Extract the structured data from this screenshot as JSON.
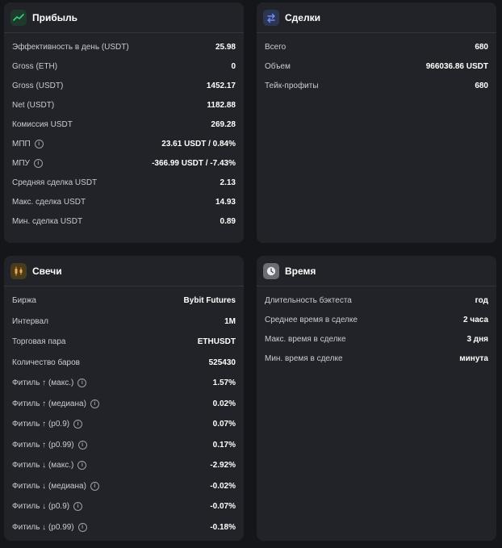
{
  "profit": {
    "title": "Прибыль",
    "icon": "trend-up-icon",
    "rows": [
      {
        "label": "Эффективность в день (USDT)",
        "value": "25.98",
        "info": false
      },
      {
        "label": "Gross (ETH)",
        "value": "0",
        "info": false
      },
      {
        "label": "Gross (USDT)",
        "value": "1452.17",
        "info": false
      },
      {
        "label": "Net (USDT)",
        "value": "1182.88",
        "info": false
      },
      {
        "label": "Комиссия USDT",
        "value": "269.28",
        "info": false
      },
      {
        "label": "МПП",
        "value": "23.61 USDT / 0.84%",
        "info": true
      },
      {
        "label": "МПУ",
        "value": "-366.99 USDT / -7.43%",
        "info": true
      },
      {
        "label": "Средняя сделка USDT",
        "value": "2.13",
        "info": false
      },
      {
        "label": "Макс. сделка USDT",
        "value": "14.93",
        "info": false
      },
      {
        "label": "Мин. сделка USDT",
        "value": "0.89",
        "info": false
      }
    ]
  },
  "trades": {
    "title": "Сделки",
    "icon": "swap-arrows-icon",
    "rows": [
      {
        "label": "Всего",
        "value": "680",
        "info": false
      },
      {
        "label": "Объем",
        "value": "966036.86 USDT",
        "info": false
      },
      {
        "label": "Тейк-профиты",
        "value": "680",
        "info": false
      }
    ]
  },
  "candles": {
    "title": "Свечи",
    "icon": "candlestick-icon",
    "rows": [
      {
        "label": "Биржа",
        "value": "Bybit Futures",
        "info": false
      },
      {
        "label": "Интервал",
        "value": "1M",
        "info": false
      },
      {
        "label": "Торговая пара",
        "value": "ETHUSDT",
        "info": false
      },
      {
        "label": "Количество баров",
        "value": "525430",
        "info": false
      },
      {
        "label": "Фитиль ↑ (макс.)",
        "value": "1.57%",
        "info": true
      },
      {
        "label": "Фитиль ↑ (медиана)",
        "value": "0.02%",
        "info": true
      },
      {
        "label": "Фитиль ↑ (p0.9)",
        "value": "0.07%",
        "info": true
      },
      {
        "label": "Фитиль ↑ (p0.99)",
        "value": "0.17%",
        "info": true
      },
      {
        "label": "Фитиль ↓ (макс.)",
        "value": "-2.92%",
        "info": true
      },
      {
        "label": "Фитиль ↓ (медиана)",
        "value": "-0.02%",
        "info": true
      },
      {
        "label": "Фитиль ↓ (p0.9)",
        "value": "-0.07%",
        "info": true
      },
      {
        "label": "Фитиль ↓ (p0.99)",
        "value": "-0.18%",
        "info": true
      }
    ]
  },
  "time": {
    "title": "Время",
    "icon": "clock-icon",
    "rows": [
      {
        "label": "Длительность бэктеста",
        "value": "год",
        "info": false
      },
      {
        "label": "Среднее время в сделке",
        "value": "2 часа",
        "info": false
      },
      {
        "label": "Макс. время в сделке",
        "value": "3 дня",
        "info": false
      },
      {
        "label": "Мин. время в сделке",
        "value": "минута",
        "info": false
      }
    ]
  },
  "colors": {
    "background": "#151619",
    "card": "#222328",
    "profit_icon_bg": "#1f3a2c",
    "trades_icon_bg": "#2c3552",
    "candles_icon_bg": "#4a3a1e",
    "time_icon_bg": "#6b6d75"
  }
}
